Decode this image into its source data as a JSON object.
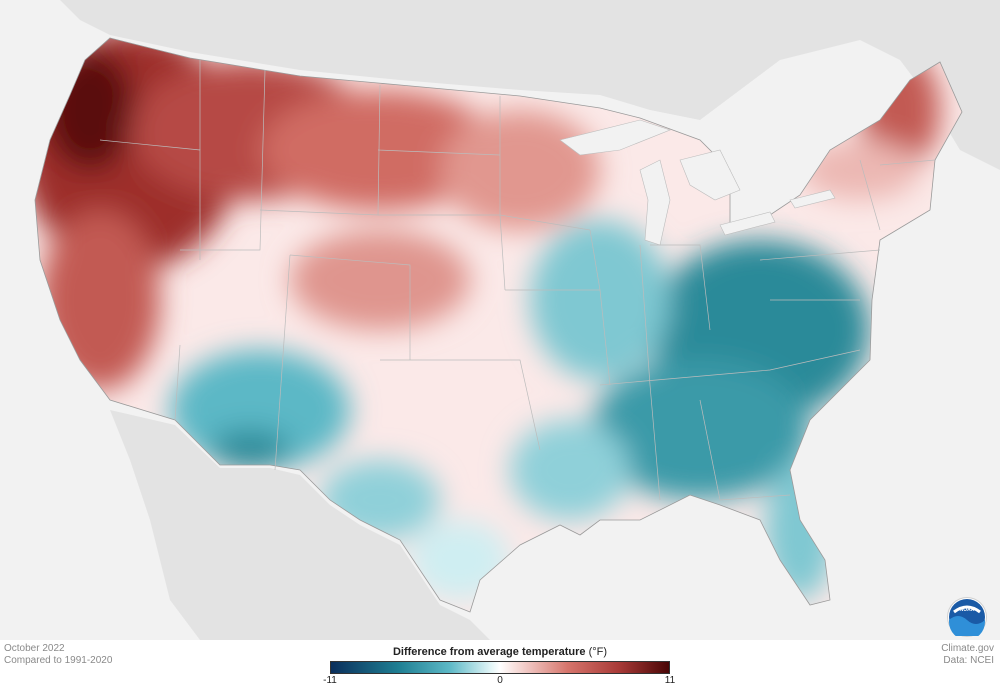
{
  "map": {
    "title": "Difference from average temperature",
    "unit": "(°F)",
    "period": "October 2022",
    "baseline": "Compared to 1991-2020",
    "source_site": "Climate.gov",
    "source_data": "Data: NCEI",
    "legend": {
      "min_label": "-11",
      "mid_label": "0",
      "max_label": "11",
      "min_value": -11,
      "max_value": 11,
      "colors": [
        "#0b2f5c",
        "#1f7f93",
        "#3aa8b8",
        "#c8ecf0",
        "#ffffff",
        "#f5cfcb",
        "#d6756c",
        "#a93b38",
        "#4a0606"
      ]
    },
    "region_colors": {
      "land_background": "#e3e3e3",
      "ocean": "#f2f2f2",
      "warm_strong": "#9d2f2b",
      "warm": "#c8625b",
      "warm_light": "#e7a8a2",
      "neutral": "#fbe9e8",
      "cool_light": "#cfeef2",
      "cool": "#5cb8c6",
      "cool_strong": "#2a8a99"
    },
    "logo_text": "NOAA"
  }
}
